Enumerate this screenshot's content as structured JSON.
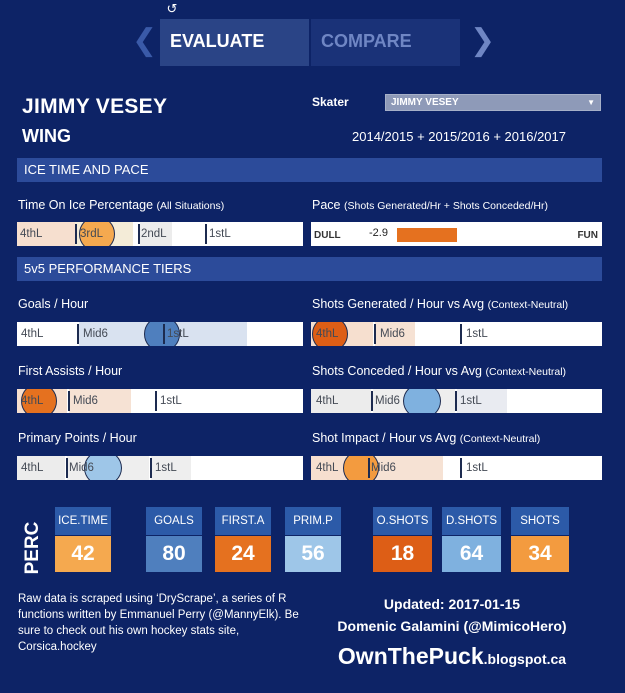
{
  "nav": {
    "reset_icon": "reset-icon",
    "prev_glyph": "❮",
    "next_glyph": "❯",
    "tabs": [
      {
        "label": "EVALUATE",
        "active": true
      },
      {
        "label": "COMPARE",
        "active": false
      }
    ]
  },
  "player": {
    "name": "JIMMY VESEY",
    "position": "WING",
    "skater_label": "Skater",
    "skater_selected": "JIMMY VESEY",
    "seasons": "2014/2015 + 2015/2016 + 2016/2017"
  },
  "sections": {
    "ice_time": "ICE TIME AND PACE",
    "performance": "5v5 PERFORMANCE TIERS"
  },
  "metrics": {
    "toi": {
      "title": "Time On Ice Percentage",
      "note": "(All Situations)",
      "tiers": [
        "4thL",
        "3rdL",
        "2ndL",
        "1stL"
      ]
    },
    "pace": {
      "title": "Pace",
      "note": "(Shots Generated/Hr + Shots Conceded/Hr)",
      "left": "DULL",
      "right": "FUN",
      "value": "-2.9"
    },
    "goals": {
      "title": "Goals / Hour",
      "note": "",
      "tiers": [
        "4thL",
        "Mid6",
        "1stL"
      ]
    },
    "shots_gen": {
      "title": "Shots Generated / Hour vs Avg",
      "note": "(Context-Neutral)",
      "tiers": [
        "4thL",
        "Mid6",
        "1stL"
      ]
    },
    "first_assists": {
      "title": "First Assists / Hour",
      "note": "",
      "tiers": [
        "4thL",
        "Mid6",
        "1stL"
      ]
    },
    "shots_con": {
      "title": "Shots Conceded / Hour vs Avg",
      "note": "(Context-Neutral)",
      "tiers": [
        "4thL",
        "Mid6",
        "1stL"
      ]
    },
    "primary_points": {
      "title": "Primary Points / Hour",
      "note": "",
      "tiers": [
        "4thL",
        "Mid6",
        "1stL"
      ]
    },
    "shot_impact": {
      "title": "Shot Impact / Hour vs Avg",
      "note": "(Context-Neutral)",
      "tiers": [
        "4thL",
        "Mid6",
        "1stL"
      ]
    }
  },
  "perc": {
    "label": "PERC",
    "items": [
      {
        "label": "ICE.TIME",
        "value": "42",
        "color": "#f5a94f"
      },
      {
        "label": "GOALS",
        "value": "80",
        "color": "#4f7fbe"
      },
      {
        "label": "FIRST.A",
        "value": "24",
        "color": "#e5711f"
      },
      {
        "label": "PRIM.P",
        "value": "56",
        "color": "#9ec6e8"
      },
      {
        "label": "O.SHOTS",
        "value": "18",
        "color": "#dd5e16"
      },
      {
        "label": "D.SHOTS",
        "value": "64",
        "color": "#7fb1df"
      },
      {
        "label": "SHOTS",
        "value": "34",
        "color": "#f39b3f"
      }
    ]
  },
  "footer": {
    "note": "Raw data is scraped using ‘DryScrape’, a series of R functions written by Emmanuel Perry (@MannyElk). Be sure to check out his own hockey stats site, Corsica.hockey",
    "updated": "Updated: 2017-01-15",
    "author": "Domenic Galamini (@MimicoHero)",
    "brand_big": "OwnThePuck",
    "brand_small": ".blogspot.ca"
  },
  "colors": {
    "background": "#0d2366",
    "section_bar": "#2c4b9a",
    "orange": "#e5711f",
    "light_blue": "#9ec6e8"
  }
}
